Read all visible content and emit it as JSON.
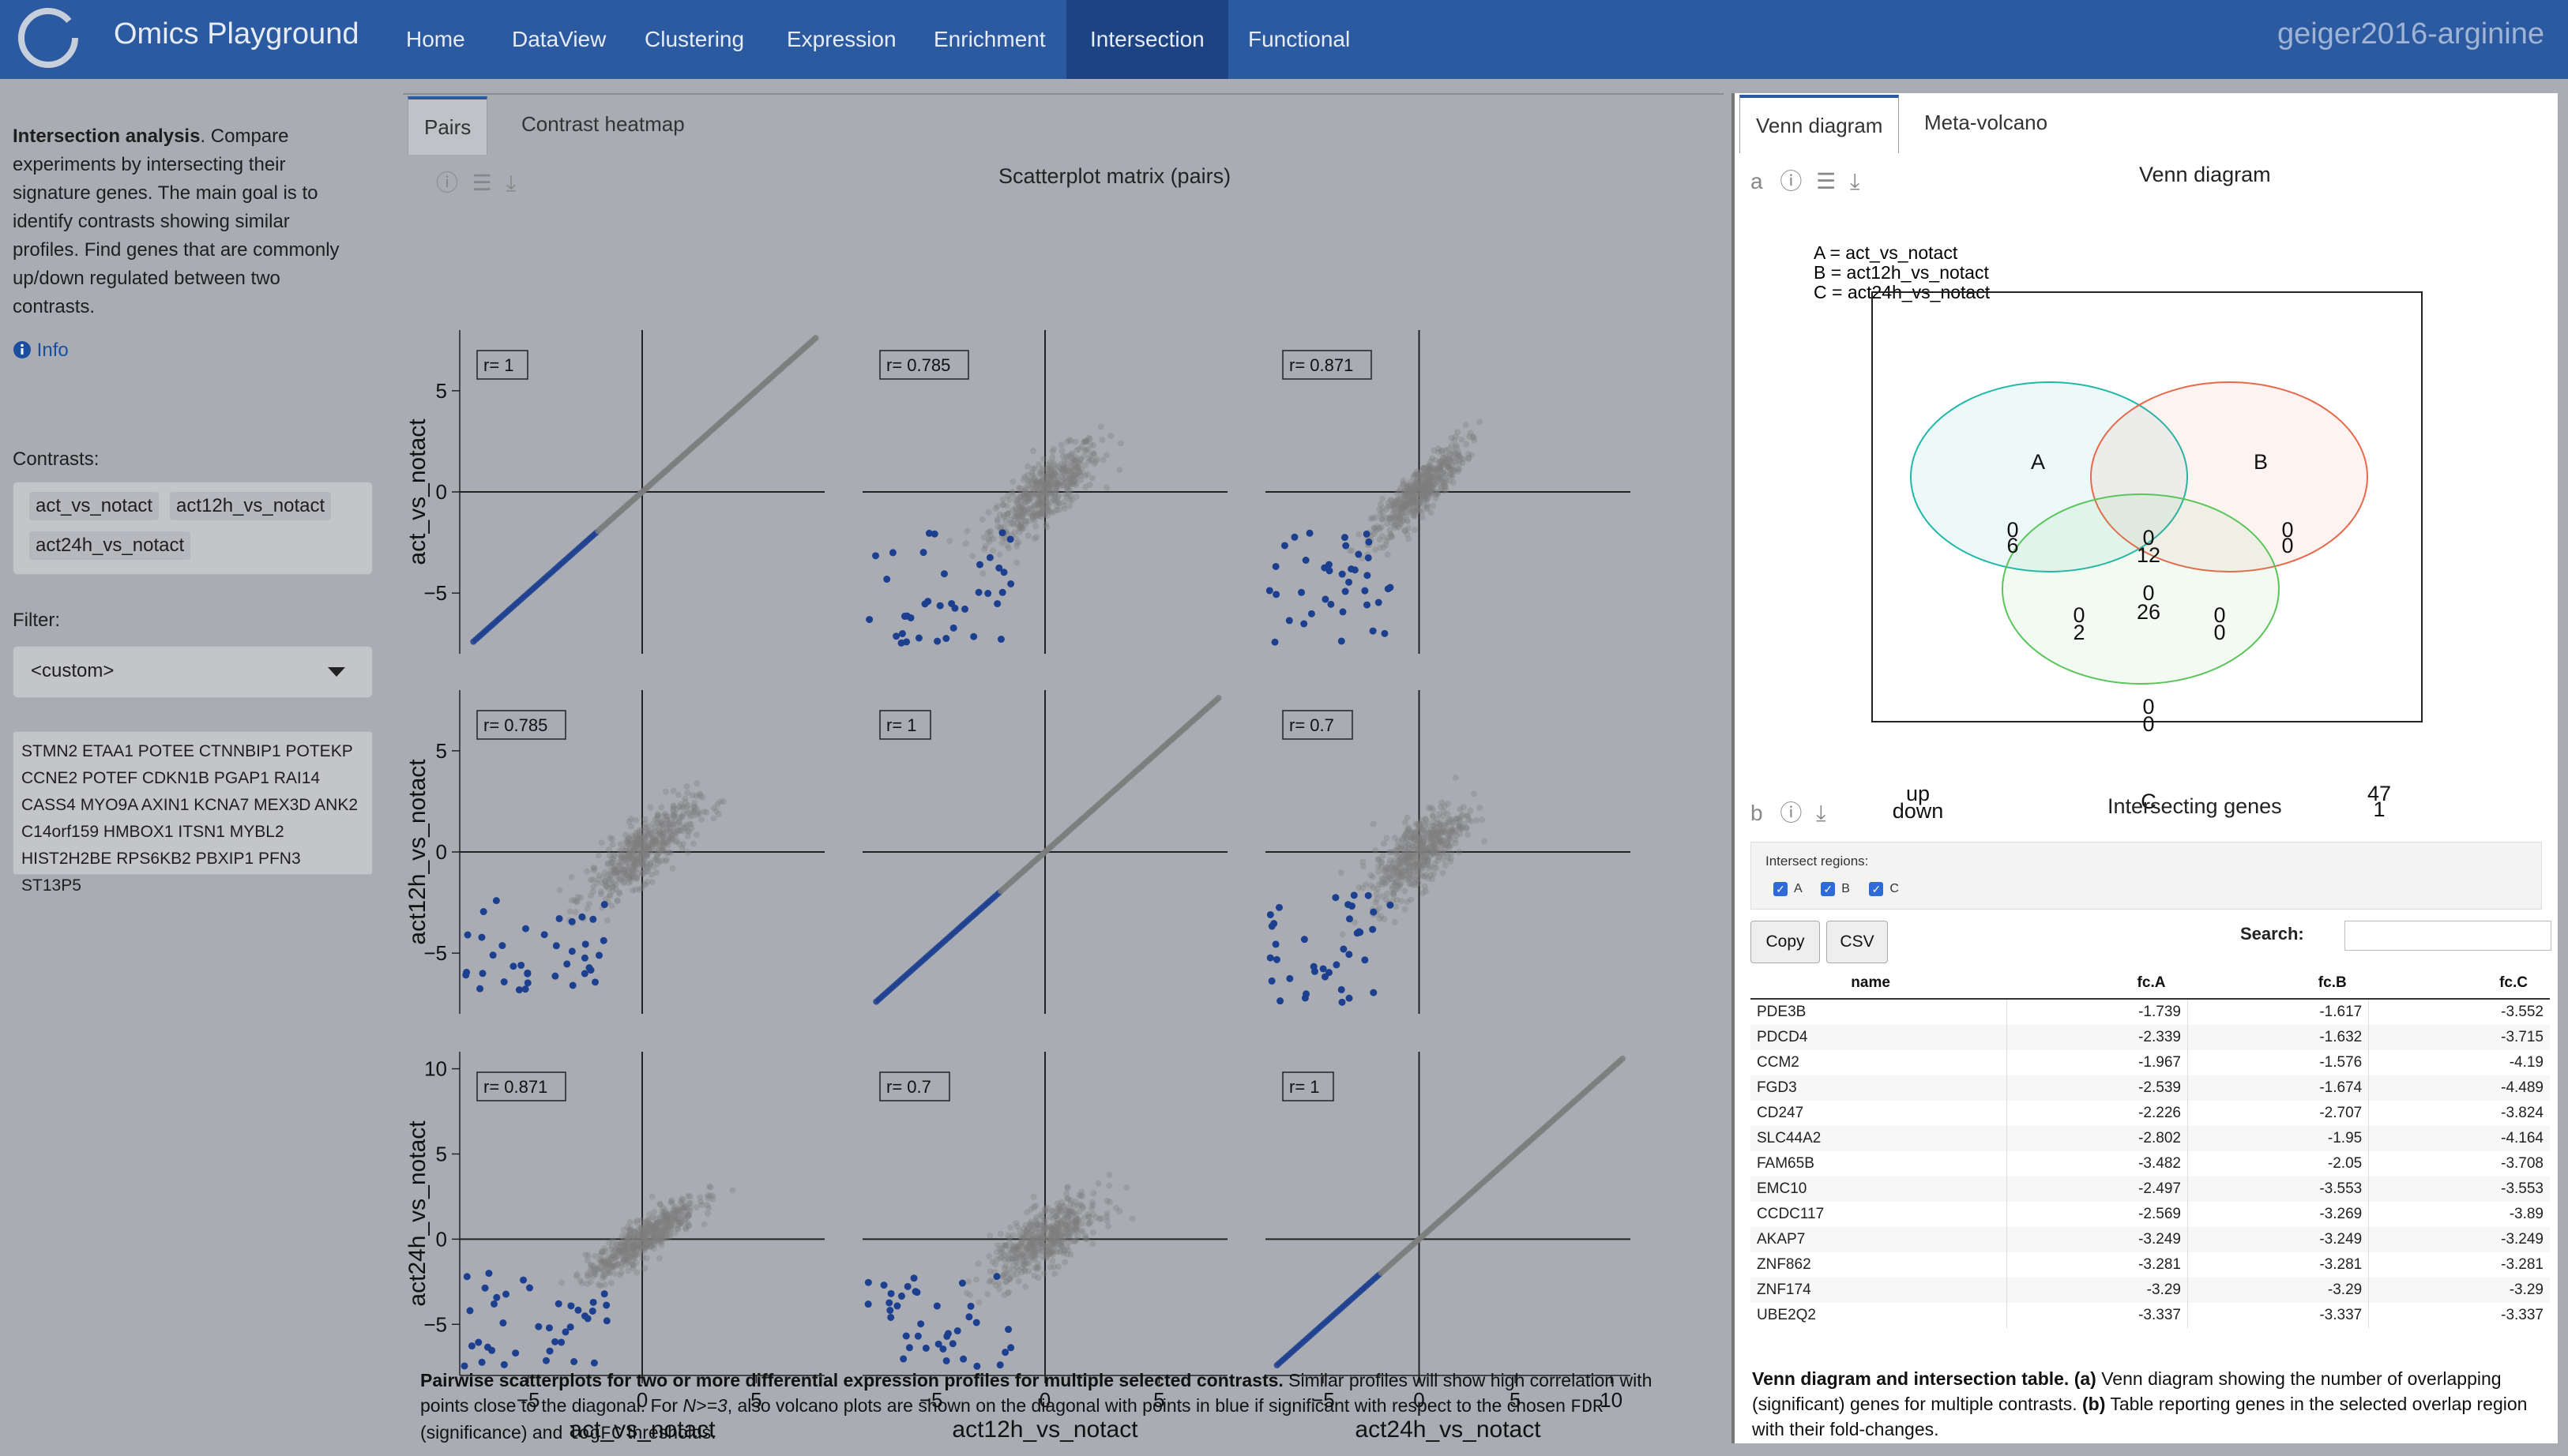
{
  "nav": {
    "brand": "Omics Playground",
    "items": [
      "Home",
      "DataView",
      "Clustering",
      "Expression",
      "Enrichment",
      "Intersection",
      "Functional"
    ],
    "active": "Intersection",
    "dataset": "geiger2016-arginine"
  },
  "sidebar": {
    "desc_bold": "Intersection analysis",
    "desc_rest": ". Compare experiments by intersecting their signature genes. The main goal is to identify contrasts showing similar profiles. Find genes that are commonly up/down regulated between two contrasts.",
    "info": "Info",
    "contrasts_label": "Contrasts:",
    "contrasts": [
      "act_vs_notact",
      "act12h_vs_notact",
      "act24h_vs_notact"
    ],
    "filter_label": "Filter:",
    "filter_value": "<custom>",
    "genes_text": "STMN2 ETAA1 POTEE CTNNBIP1 POTEKP CCNE2 POTEF CDKN1B PGAP1 RAI14 CASS4 MYO9A AXIN1 KCNA7 MEX3D ANK2 C14orf159 HMBOX1 ITSN1 MYBL2 HIST2H2BE RPS6KB2 PBXIP1 PFN3 ST13P5"
  },
  "left_panel": {
    "tabs": [
      "Pairs",
      "Contrast heatmap"
    ],
    "title": "Scatterplot matrix (pairs)",
    "caption_bold": "Pairwise scatterplots for two or more differential expression profiles for multiple selected contrasts.",
    "caption_rest1": " Similar profiles will show high correlation with points close to the diagonal. For ",
    "caption_italic": "N>=3",
    "caption_rest2": ", also volcano plots are shown on the diagonal with points in blue if significant with respect to the chosen ",
    "caption_code1": "FDR",
    "caption_rest3": " (significance) and ",
    "caption_code2": "logFC",
    "caption_rest4": " thresholds."
  },
  "chart_data": [
    {
      "type": "scatter",
      "title": "Scatterplot matrix (pairs)",
      "variables": [
        "act_vs_notact",
        "act12h_vs_notact",
        "act24h_vs_notact"
      ],
      "correlations": [
        [
          "r= 1",
          "r= 0.785",
          "r= 0.871"
        ],
        [
          "r= 0.785",
          "r= 1",
          "r= 0.7"
        ],
        [
          "r= 0.871",
          "r= 0.7",
          "r= 1"
        ]
      ],
      "row_ticks": [
        [
          "5",
          "0",
          "−5"
        ],
        [
          "5",
          "0",
          "−5"
        ],
        [
          "10",
          "5",
          "0",
          "−5"
        ]
      ],
      "row_tick_values": [
        [
          5,
          0,
          -5
        ],
        [
          5,
          0,
          -5
        ],
        [
          10,
          5,
          0,
          -5
        ]
      ],
      "row_ylim": [
        [
          -8,
          8
        ],
        [
          -8,
          8
        ],
        [
          -8,
          11
        ]
      ],
      "col_ticks": [
        [
          "−5",
          "0",
          "5"
        ],
        [
          "−5",
          "0",
          "5"
        ],
        [
          "−5",
          "0",
          "5",
          "10"
        ]
      ],
      "col_tick_values": [
        [
          -5,
          0,
          5
        ],
        [
          -5,
          0,
          5
        ],
        [
          -5,
          0,
          5,
          10
        ]
      ],
      "col_xlim": [
        [
          -8,
          8
        ],
        [
          -8,
          8
        ],
        [
          -8,
          11
        ]
      ]
    }
  ],
  "venn": {
    "tabs": [
      "Venn diagram",
      "Meta-volcano"
    ],
    "label": "a",
    "title": "Venn diagram",
    "legend": [
      "A = act_vs_notact",
      "B = act12h_vs_notact",
      "C = act24h_vs_notact"
    ],
    "sets": [
      "A",
      "B",
      "C"
    ],
    "colors": [
      "#1fb8a9",
      "#e8684a",
      "#59c55a"
    ],
    "regions": {
      "A_only": [
        "0",
        "6"
      ],
      "AB": [
        "0",
        "12"
      ],
      "B_only": [
        "0",
        "0"
      ],
      "ABC": [
        "0",
        "26"
      ],
      "AC": [
        "0",
        "2"
      ],
      "BC": [
        "0",
        "0"
      ],
      "C_only": [
        "0",
        "0"
      ],
      "none": [
        "47",
        "1"
      ]
    },
    "corner_labels": [
      "up",
      "down"
    ]
  },
  "table_panel": {
    "label": "b",
    "title": "Intersecting genes",
    "intersect_label": "Intersect regions:",
    "checkboxes": [
      "A",
      "B",
      "C"
    ],
    "buttons": [
      "Copy",
      "CSV"
    ],
    "search_label": "Search:",
    "columns": [
      "name",
      "fc.A",
      "fc.B",
      "fc.C"
    ],
    "rows": [
      [
        "PDE3B",
        "-1.739",
        "-1.617",
        "-3.552"
      ],
      [
        "PDCD4",
        "-2.339",
        "-1.632",
        "-3.715"
      ],
      [
        "CCM2",
        "-1.967",
        "-1.576",
        "-4.19"
      ],
      [
        "FGD3",
        "-2.539",
        "-1.674",
        "-4.489"
      ],
      [
        "CD247",
        "-2.226",
        "-2.707",
        "-3.824"
      ],
      [
        "SLC44A2",
        "-2.802",
        "-1.95",
        "-4.164"
      ],
      [
        "FAM65B",
        "-3.482",
        "-2.05",
        "-3.708"
      ],
      [
        "EMC10",
        "-2.497",
        "-3.553",
        "-3.553"
      ],
      [
        "CCDC117",
        "-2.569",
        "-3.269",
        "-3.89"
      ],
      [
        "AKAP7",
        "-3.249",
        "-3.249",
        "-3.249"
      ],
      [
        "ZNF862",
        "-3.281",
        "-3.281",
        "-3.281"
      ],
      [
        "ZNF174",
        "-3.29",
        "-3.29",
        "-3.29"
      ],
      [
        "UBE2Q2",
        "-3.337",
        "-3.337",
        "-3.337"
      ]
    ],
    "caption_bold": "Venn diagram and intersection table.",
    "caption_b1": "(a)",
    "caption_t1": " Venn diagram showing the number of overlapping (significant) genes for multiple contrasts. ",
    "caption_b2": "(b)",
    "caption_t2": " Table reporting genes in the selected overlap region with their fold-changes."
  },
  "colors": {
    "nav": "#2c5aa0",
    "highlight": "#1d3f8f",
    "points": "#8a8a8a"
  }
}
